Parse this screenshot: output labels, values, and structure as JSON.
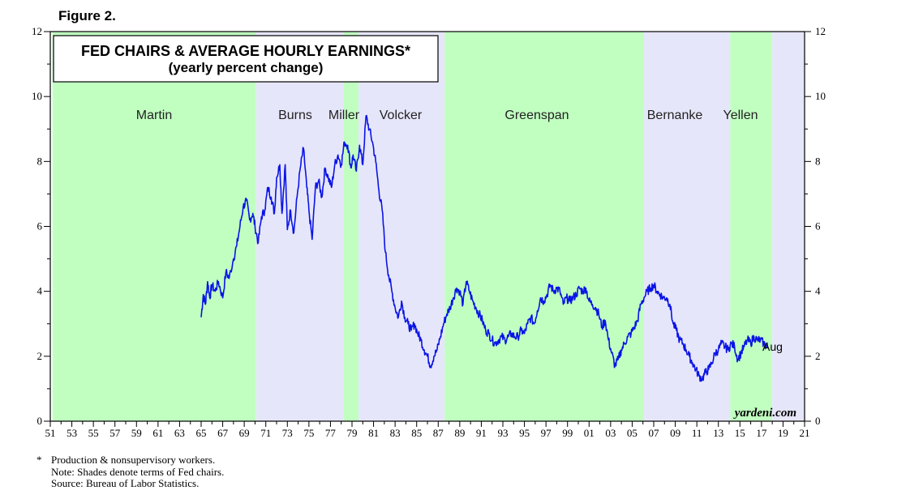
{
  "figure_label": "Figure 2.",
  "footnotes": {
    "marker": "*",
    "lines": [
      "Production & nonsupervisory workers.",
      "Note: Shades denote terms of Fed chairs.",
      "Source: Bureau of Labor Statistics."
    ]
  },
  "colors": {
    "series": "#0a14e6",
    "shade_green": "#c1ffc1",
    "shade_lavender": "#e6e6fa"
  },
  "chart_data": {
    "type": "line",
    "title": "FED CHAIRS & AVERAGE HOURLY EARNINGS*",
    "subtitle": "(yearly percent change)",
    "xlabel": "",
    "ylabel": "",
    "xlim": [
      1951,
      2021
    ],
    "ylim": [
      0,
      12
    ],
    "y_ticks": [
      "0",
      "2",
      "4",
      "6",
      "8",
      "10",
      "12"
    ],
    "x_tick_labels": [
      "51",
      "53",
      "55",
      "57",
      "59",
      "61",
      "63",
      "65",
      "67",
      "69",
      "71",
      "73",
      "75",
      "77",
      "79",
      "81",
      "83",
      "85",
      "87",
      "89",
      "91",
      "93",
      "95",
      "97",
      "99",
      "01",
      "03",
      "05",
      "07",
      "09",
      "11",
      "13",
      "15",
      "17",
      "19",
      "21"
    ],
    "chairs": [
      {
        "name": "Martin",
        "start": 1951.2,
        "end": 1970.1,
        "shade": "green"
      },
      {
        "name": "Burns",
        "start": 1970.1,
        "end": 1978.2,
        "shade": "lavender"
      },
      {
        "name": "Miller",
        "start": 1978.2,
        "end": 1979.6,
        "shade": "green"
      },
      {
        "name": "Volcker",
        "start": 1979.6,
        "end": 1987.6,
        "shade": "lavender"
      },
      {
        "name": "Greenspan",
        "start": 1987.6,
        "end": 2006.1,
        "shade": "green"
      },
      {
        "name": "Bernanke",
        "start": 2006.1,
        "end": 2014.1,
        "shade": "lavender"
      },
      {
        "name": "Yellen",
        "start": 2014.1,
        "end": 2018.0,
        "shade": "green"
      },
      {
        "name": "",
        "start": 2018.0,
        "end": 2021.0,
        "shade": "lavender"
      }
    ],
    "series": [
      {
        "name": "Average hourly earnings, production & nonsupervisory workers (yoy %)",
        "x": [
          1965.0,
          1965.2,
          1965.4,
          1965.6,
          1965.8,
          1966.0,
          1966.3,
          1966.6,
          1967.0,
          1967.3,
          1967.6,
          1968.0,
          1968.3,
          1968.6,
          1968.9,
          1969.2,
          1969.5,
          1969.8,
          1970.0,
          1970.3,
          1970.6,
          1970.9,
          1971.2,
          1971.5,
          1971.8,
          1972.0,
          1972.3,
          1972.5,
          1972.8,
          1973.0,
          1973.3,
          1973.6,
          1973.9,
          1974.2,
          1974.5,
          1974.8,
          1975.0,
          1975.3,
          1975.6,
          1975.9,
          1976.2,
          1976.5,
          1976.8,
          1977.1,
          1977.4,
          1977.7,
          1978.0,
          1978.3,
          1978.6,
          1978.9,
          1979.1,
          1979.4,
          1979.7,
          1980.0,
          1980.3,
          1980.6,
          1980.9,
          1981.2,
          1981.5,
          1981.8,
          1982.1,
          1982.4,
          1982.7,
          1983.0,
          1983.3,
          1983.6,
          1983.9,
          1984.2,
          1984.5,
          1984.8,
          1985.1,
          1985.4,
          1985.7,
          1986.0,
          1986.3,
          1986.6,
          1986.9,
          1987.2,
          1987.5,
          1987.8,
          1988.1,
          1988.4,
          1988.7,
          1989.0,
          1989.3,
          1989.6,
          1989.9,
          1990.2,
          1990.5,
          1990.8,
          1991.1,
          1991.4,
          1991.7,
          1992.0,
          1992.3,
          1992.6,
          1992.9,
          1993.2,
          1993.5,
          1993.8,
          1994.1,
          1994.4,
          1994.7,
          1995.0,
          1995.3,
          1995.6,
          1995.9,
          1996.2,
          1996.5,
          1996.8,
          1997.1,
          1997.4,
          1997.7,
          1998.0,
          1998.3,
          1998.6,
          1998.9,
          1999.2,
          1999.5,
          1999.8,
          2000.1,
          2000.4,
          2000.7,
          2001.0,
          2001.3,
          2001.6,
          2001.9,
          2002.2,
          2002.5,
          2002.8,
          2003.1,
          2003.4,
          2003.7,
          2004.0,
          2004.3,
          2004.6,
          2004.9,
          2005.2,
          2005.5,
          2005.8,
          2006.1,
          2006.4,
          2006.7,
          2007.0,
          2007.3,
          2007.6,
          2007.9,
          2008.2,
          2008.5,
          2008.8,
          2009.1,
          2009.4,
          2009.7,
          2010.0,
          2010.3,
          2010.6,
          2010.9,
          2011.2,
          2011.5,
          2011.8,
          2012.1,
          2012.4,
          2012.7,
          2013.0,
          2013.3,
          2013.6,
          2013.9,
          2014.2,
          2014.5,
          2014.8,
          2015.1,
          2015.4,
          2015.7,
          2016.0,
          2016.3,
          2016.6,
          2016.9,
          2017.2,
          2017.45,
          2017.6
        ],
        "values": [
          3.2,
          3.9,
          3.6,
          4.3,
          3.8,
          4.2,
          4.0,
          4.3,
          3.8,
          4.6,
          4.4,
          5.0,
          5.4,
          6.0,
          6.6,
          6.8,
          6.2,
          6.4,
          6.0,
          5.5,
          6.3,
          6.5,
          7.2,
          6.9,
          6.4,
          7.5,
          7.9,
          6.4,
          7.9,
          5.9,
          6.5,
          5.8,
          6.9,
          7.8,
          8.4,
          7.2,
          6.5,
          5.6,
          7.2,
          7.4,
          6.9,
          7.8,
          7.5,
          7.2,
          7.9,
          8.2,
          7.9,
          8.6,
          8.5,
          7.8,
          8.2,
          7.7,
          8.5,
          7.9,
          9.4,
          9.0,
          8.6,
          8.0,
          7.1,
          6.5,
          5.2,
          4.5,
          4.0,
          3.5,
          3.2,
          3.7,
          3.2,
          3.0,
          2.8,
          3.0,
          2.7,
          2.5,
          2.2,
          2.0,
          1.7,
          2.0,
          2.2,
          2.6,
          3.0,
          3.3,
          3.5,
          3.8,
          4.1,
          4.0,
          3.6,
          4.3,
          4.0,
          3.7,
          3.5,
          3.3,
          3.1,
          2.8,
          2.7,
          2.5,
          2.4,
          2.5,
          2.6,
          2.5,
          2.6,
          2.7,
          2.6,
          2.6,
          2.8,
          2.7,
          3.0,
          3.2,
          3.0,
          3.4,
          3.8,
          3.7,
          3.9,
          4.2,
          4.0,
          4.1,
          4.0,
          3.6,
          3.8,
          3.7,
          3.8,
          3.9,
          4.1,
          4.0,
          4.1,
          3.7,
          3.6,
          3.5,
          3.3,
          2.9,
          3.1,
          2.5,
          2.1,
          1.7,
          1.9,
          2.2,
          2.4,
          2.6,
          2.7,
          2.9,
          3.1,
          3.6,
          3.8,
          4.0,
          4.1,
          4.2,
          4.0,
          3.9,
          3.8,
          3.8,
          3.6,
          3.0,
          2.8,
          2.5,
          2.4,
          2.2,
          2.0,
          1.8,
          1.6,
          1.4,
          1.3,
          1.5,
          1.6,
          1.8,
          2.1,
          2.2,
          2.4,
          2.3,
          2.2,
          2.4,
          2.3,
          1.9,
          2.1,
          2.3,
          2.5,
          2.4,
          2.6,
          2.5,
          2.5,
          2.4,
          2.3,
          2.3
        ]
      }
    ],
    "annotations": {
      "last_point_label": "Aug",
      "watermark": "yardeni.com"
    }
  }
}
